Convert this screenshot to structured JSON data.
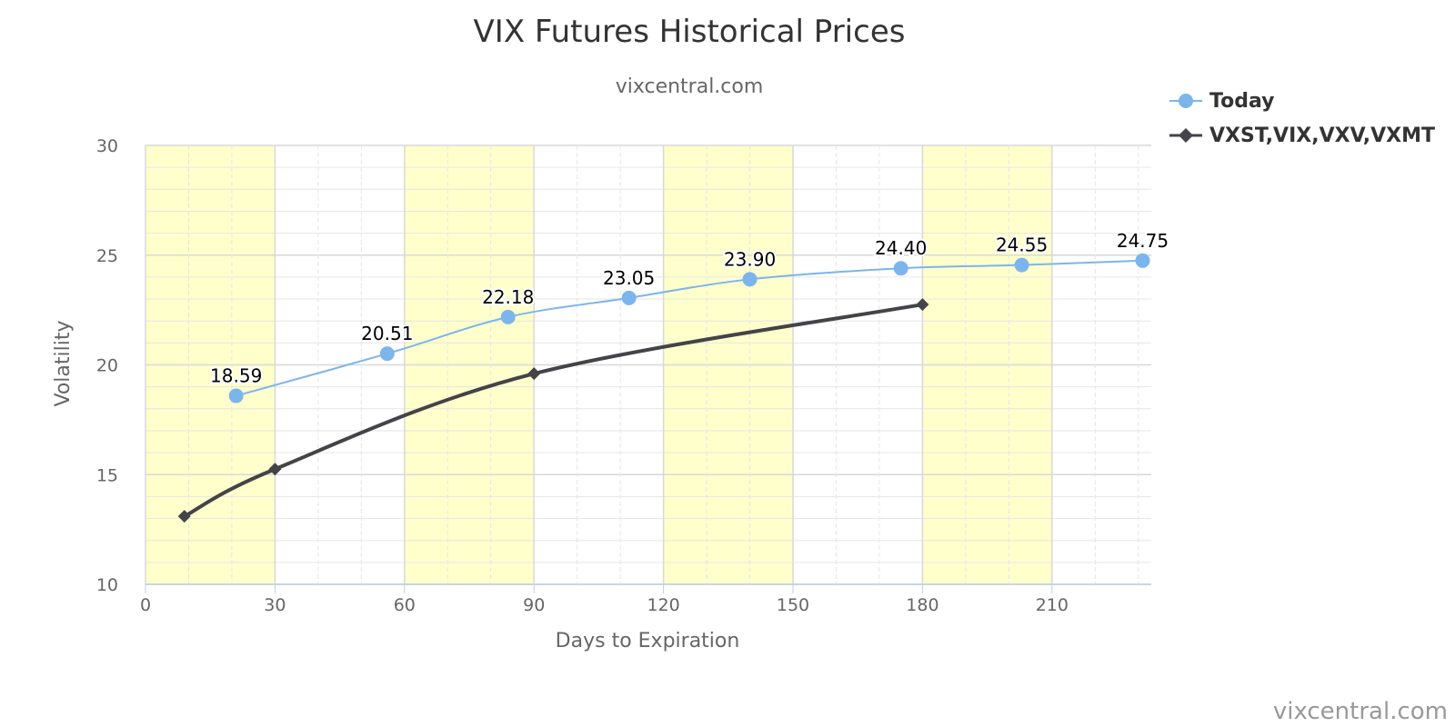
{
  "chart_data": {
    "type": "line",
    "title": "VIX Futures Historical Prices",
    "subtitle": "vixcentral.com",
    "xlabel": "Days to Expiration",
    "ylabel": "Volatility",
    "xlim": [
      0,
      233
    ],
    "ylim": [
      10,
      30
    ],
    "x_ticks": [
      0,
      30,
      60,
      90,
      120,
      150,
      180,
      210
    ],
    "y_ticks": [
      10,
      15,
      20,
      25,
      30
    ],
    "grid": true,
    "legend_position": "top-right",
    "shaded_bands": [
      [
        0,
        30
      ],
      [
        60,
        90
      ],
      [
        120,
        150
      ],
      [
        180,
        210
      ]
    ],
    "band_color": "#ffffcc",
    "series": [
      {
        "name": "Today",
        "color": "#7cb5ec",
        "marker": "circle",
        "data_labels": true,
        "x": [
          21,
          56,
          84,
          112,
          140,
          175,
          203,
          231
        ],
        "values": [
          18.59,
          20.51,
          22.18,
          23.05,
          23.9,
          24.4,
          24.55,
          24.75
        ],
        "labels": [
          "18.59",
          "20.51",
          "22.18",
          "23.05",
          "23.90",
          "24.40",
          "24.55",
          "24.75"
        ]
      },
      {
        "name": "VXST,VIX,VXV,VXMT",
        "color": "#434348",
        "marker": "diamond",
        "data_labels": false,
        "x": [
          9,
          30,
          90,
          180
        ],
        "values": [
          13.1,
          15.25,
          19.6,
          22.75
        ]
      }
    ]
  },
  "watermark": "vixcentral.com"
}
